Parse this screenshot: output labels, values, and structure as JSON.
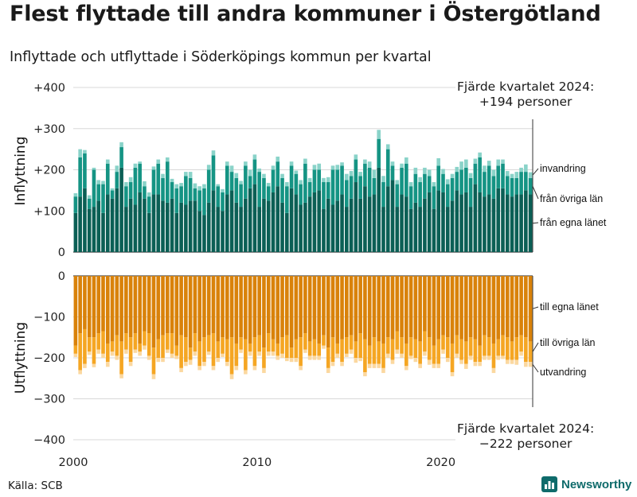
{
  "title": "Flest flyttade till andra kommuner i Östergötland",
  "subtitle": "Inflyttade och utflyttade i Söderköpings kommun per kvartal",
  "source": "Källa: SCB",
  "brand": "Newsworthy",
  "annotations": {
    "top_line1": "Fjärde kvartalet 2024:",
    "top_line2": "+194 personer",
    "bottom_line1": "Fjärde kvartalet 2024:",
    "bottom_line2": "−222 personer"
  },
  "colors": {
    "in_dark": "#0b5f55",
    "in_mid": "#159484",
    "in_light": "#8ad3c9",
    "out_dark": "#d9820a",
    "out_mid": "#f5a623",
    "out_light": "#fbd8a0"
  },
  "chart_data": [
    {
      "type": "bar",
      "stacked": true,
      "title": "Inflyttning",
      "ylabel": "Inflyttning",
      "ylim": [
        0,
        400
      ],
      "yticks": [
        "0",
        "+100",
        "+200",
        "+300",
        "+400"
      ],
      "xticks": [
        "2000",
        "2010",
        "2020"
      ],
      "period": "2000 Q1 – 2024 Q4 (kvartal)",
      "series": [
        {
          "name": "från egna länet",
          "values": [
            95,
            135,
            155,
            105,
            110,
            125,
            95,
            140,
            130,
            155,
            205,
            110,
            130,
            115,
            145,
            130,
            95,
            140,
            140,
            125,
            120,
            130,
            95,
            120,
            115,
            125,
            125,
            100,
            90,
            120,
            150,
            110,
            100,
            140,
            150,
            120,
            110,
            130,
            155,
            165,
            110,
            130,
            125,
            145,
            160,
            120,
            95,
            155,
            140,
            115,
            120,
            135,
            145,
            150,
            105,
            130,
            115,
            125,
            140,
            110,
            130,
            170,
            130,
            160,
            135,
            140,
            205,
            110,
            160,
            175,
            110,
            140,
            135,
            105,
            120,
            110,
            130,
            145,
            105,
            150,
            145,
            110,
            125,
            150,
            140,
            145,
            110,
            165,
            145,
            135,
            140,
            130,
            155,
            155,
            140,
            135,
            140,
            140,
            150,
            140
          ]
        },
        {
          "name": "från övriga län",
          "values": [
            40,
            95,
            85,
            25,
            90,
            40,
            70,
            75,
            20,
            40,
            50,
            50,
            40,
            90,
            70,
            30,
            40,
            60,
            75,
            55,
            100,
            40,
            60,
            40,
            70,
            55,
            30,
            50,
            65,
            80,
            85,
            50,
            45,
            70,
            45,
            60,
            55,
            80,
            30,
            60,
            85,
            50,
            35,
            55,
            60,
            60,
            65,
            55,
            50,
            50,
            95,
            35,
            55,
            50,
            65,
            40,
            85,
            75,
            70,
            65,
            55,
            55,
            55,
            55,
            70,
            40,
            70,
            60,
            90,
            35,
            55,
            65,
            80,
            55,
            70,
            60,
            60,
            40,
            55,
            60,
            45,
            55,
            55,
            45,
            60,
            60,
            70,
            50,
            85,
            60,
            70,
            55,
            55,
            60,
            45,
            45,
            40,
            55,
            45,
            40
          ]
        },
        {
          "name": "invandring",
          "values": [
            8,
            20,
            8,
            8,
            5,
            10,
            8,
            10,
            5,
            15,
            12,
            10,
            12,
            10,
            5,
            12,
            10,
            8,
            10,
            10,
            10,
            8,
            10,
            8,
            10,
            15,
            12,
            10,
            10,
            12,
            12,
            5,
            8,
            10,
            15,
            12,
            8,
            10,
            15,
            12,
            8,
            10,
            8,
            10,
            12,
            10,
            10,
            10,
            8,
            10,
            12,
            10,
            12,
            15,
            10,
            12,
            10,
            12,
            8,
            15,
            12,
            12,
            10,
            10,
            15,
            20,
            22,
            15,
            12,
            10,
            10,
            10,
            15,
            10,
            15,
            12,
            15,
            15,
            10,
            18,
            12,
            12,
            10,
            12,
            20,
            20,
            12,
            12,
            12,
            15,
            12,
            15,
            15,
            10,
            12,
            10,
            15,
            10,
            18,
            14
          ]
        }
      ]
    },
    {
      "type": "bar",
      "stacked": true,
      "title": "Utflyttning",
      "ylabel": "Utflyttning",
      "ylim": [
        -400,
        0
      ],
      "yticks": [
        "0",
        "−100",
        "−200",
        "−300",
        "−400"
      ],
      "xticks": [
        "2000",
        "2010",
        "2020"
      ],
      "period": "2000 Q1 – 2024 Q4 (kvartal)",
      "series": [
        {
          "name": "till egna länet",
          "values": [
            -170,
            -140,
            -130,
            -150,
            -150,
            -140,
            -135,
            -165,
            -160,
            -145,
            -160,
            -140,
            -150,
            -140,
            -165,
            -135,
            -140,
            -175,
            -155,
            -145,
            -140,
            -140,
            -170,
            -145,
            -150,
            -175,
            -140,
            -160,
            -150,
            -145,
            -140,
            -160,
            -150,
            -155,
            -150,
            -165,
            -150,
            -155,
            -165,
            -150,
            -145,
            -175,
            -140,
            -155,
            -165,
            -150,
            -145,
            -175,
            -155,
            -150,
            -140,
            -160,
            -155,
            -165,
            -145,
            -175,
            -150,
            -165,
            -155,
            -150,
            -145,
            -160,
            -140,
            -155,
            -170,
            -150,
            -160,
            -165,
            -150,
            -155,
            -135,
            -150,
            -165,
            -150,
            -155,
            -160,
            -135,
            -150,
            -170,
            -155,
            -145,
            -150,
            -165,
            -145,
            -155,
            -160,
            -150,
            -155,
            -170,
            -145,
            -150,
            -165,
            -155,
            -145,
            -150,
            -160,
            -150,
            -145,
            -150,
            -160
          ]
        },
        {
          "name": "till övriga län",
          "values": [
            -20,
            -90,
            -85,
            -35,
            -65,
            -40,
            -55,
            -45,
            -25,
            -50,
            -80,
            -40,
            -60,
            -40,
            -20,
            -35,
            -55,
            -65,
            -45,
            -55,
            -40,
            -50,
            -25,
            -80,
            -60,
            -30,
            -45,
            -60,
            -60,
            -40,
            -80,
            -40,
            -40,
            -55,
            -90,
            -55,
            -30,
            -75,
            -20,
            -70,
            -40,
            -50,
            -45,
            -30,
            -30,
            -40,
            -55,
            -25,
            -45,
            -70,
            -40,
            -35,
            -40,
            -30,
            -25,
            -50,
            -60,
            -25,
            -55,
            -40,
            -35,
            -40,
            -60,
            -80,
            -45,
            -65,
            -55,
            -60,
            -40,
            -50,
            -45,
            -40,
            -55,
            -45,
            -45,
            -55,
            -50,
            -55,
            -45,
            -60,
            -35,
            -50,
            -70,
            -45,
            -50,
            -55,
            -45,
            -55,
            -40,
            -50,
            -45,
            -60,
            -40,
            -50,
            -55,
            -45,
            -55,
            -40,
            -60,
            -50
          ]
        },
        {
          "name": "utvandring",
          "values": [
            -8,
            -10,
            -10,
            -8,
            -8,
            -10,
            -10,
            -12,
            -10,
            -10,
            -10,
            -10,
            -10,
            -8,
            -10,
            -10,
            -10,
            -12,
            -10,
            -10,
            -8,
            -10,
            -8,
            -10,
            -10,
            -12,
            -10,
            -10,
            -10,
            -8,
            -10,
            -10,
            -8,
            -10,
            -12,
            -10,
            -8,
            -10,
            -10,
            -10,
            -10,
            -12,
            -10,
            -10,
            -10,
            -10,
            -8,
            -10,
            -10,
            -10,
            -8,
            -10,
            -10,
            -10,
            -8,
            -12,
            -10,
            -10,
            -10,
            -8,
            -10,
            -12,
            -8,
            -10,
            -10,
            -10,
            -10,
            -12,
            -10,
            -10,
            -10,
            -10,
            -10,
            -8,
            -10,
            -10,
            -10,
            -12,
            -10,
            -10,
            -10,
            -10,
            -10,
            -10,
            -10,
            -12,
            -10,
            -10,
            -10,
            -10,
            -10,
            -12,
            -10,
            -8,
            -10,
            -10,
            -12,
            -10,
            -12,
            -12
          ]
        }
      ]
    }
  ]
}
